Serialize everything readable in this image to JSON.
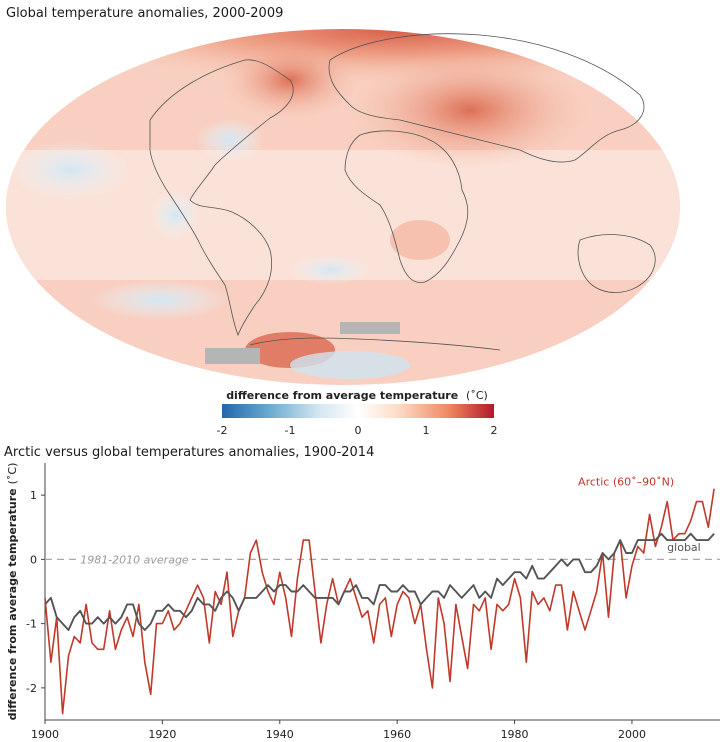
{
  "map": {
    "title": "Global temperature anomalies, 2000-2009",
    "colorbar": {
      "title": "difference from average temperature",
      "unit": "(˚C)",
      "ticks": [
        "-2",
        "-1",
        "0",
        "1",
        "2"
      ],
      "range": [
        -2,
        2
      ],
      "colors": [
        "#2166ac",
        "#67a9cf",
        "#d1e5f0",
        "#ffffff",
        "#fddbc7",
        "#ef8a62",
        "#b2182b"
      ]
    }
  },
  "chart_data": {
    "type": "line",
    "title": "Arctic versus global temperatures anomalies, 1900-2014",
    "xlabel": "",
    "ylabel": "difference from average temperature",
    "ylabel_unit": "(˚C)",
    "xlim": [
      1900,
      2015
    ],
    "ylim": [
      -2.5,
      1.5
    ],
    "xticks": [
      1900,
      1920,
      1940,
      1960,
      1980,
      2000
    ],
    "yticks": [
      -2,
      -1,
      0,
      1
    ],
    "ytick_labels": [
      "-2",
      "-1",
      "0",
      "1"
    ],
    "reference_line": {
      "y": 0,
      "label": "1981-2010 average",
      "color": "#aaaaaa"
    },
    "grid": false,
    "series": [
      {
        "name": "Arctic (60˚–90˚N)",
        "color": "#c0392b",
        "x": [
          1900,
          1901,
          1902,
          1903,
          1904,
          1905,
          1906,
          1907,
          1908,
          1909,
          1910,
          1911,
          1912,
          1913,
          1914,
          1915,
          1916,
          1917,
          1918,
          1919,
          1920,
          1921,
          1922,
          1923,
          1924,
          1925,
          1926,
          1927,
          1928,
          1929,
          1930,
          1931,
          1932,
          1933,
          1934,
          1935,
          1936,
          1937,
          1938,
          1939,
          1940,
          1941,
          1942,
          1943,
          1944,
          1945,
          1946,
          1947,
          1948,
          1949,
          1950,
          1951,
          1952,
          1953,
          1954,
          1955,
          1956,
          1957,
          1958,
          1959,
          1960,
          1961,
          1962,
          1963,
          1964,
          1965,
          1966,
          1967,
          1968,
          1969,
          1970,
          1971,
          1972,
          1973,
          1974,
          1975,
          1976,
          1977,
          1978,
          1979,
          1980,
          1981,
          1982,
          1983,
          1984,
          1985,
          1986,
          1987,
          1988,
          1989,
          1990,
          1991,
          1992,
          1993,
          1994,
          1995,
          1996,
          1997,
          1998,
          1999,
          2000,
          2001,
          2002,
          2003,
          2004,
          2005,
          2006,
          2007,
          2008,
          2009,
          2010,
          2011,
          2012,
          2013,
          2014
        ],
        "y": [
          -0.6,
          -1.6,
          -0.9,
          -2.4,
          -1.5,
          -1.2,
          -1.3,
          -0.7,
          -1.3,
          -1.4,
          -1.4,
          -0.8,
          -1.4,
          -1.1,
          -0.9,
          -1.2,
          -0.7,
          -1.6,
          -2.1,
          -1.0,
          -1.0,
          -0.8,
          -1.1,
          -1.0,
          -0.8,
          -0.6,
          -0.4,
          -0.6,
          -1.3,
          -0.5,
          -0.7,
          -0.2,
          -1.2,
          -0.8,
          -0.6,
          0.1,
          0.3,
          -0.2,
          -0.5,
          -0.7,
          -0.2,
          -0.6,
          -1.2,
          -0.3,
          0.3,
          0.3,
          -0.5,
          -1.3,
          -0.7,
          -0.3,
          -0.7,
          -0.5,
          -0.3,
          -0.6,
          -0.9,
          -0.8,
          -1.3,
          -0.7,
          -0.6,
          -1.2,
          -0.7,
          -0.5,
          -0.6,
          -1.0,
          -0.7,
          -1.4,
          -2.0,
          -0.6,
          -1.0,
          -1.9,
          -0.7,
          -1.2,
          -1.7,
          -0.7,
          -0.8,
          -0.6,
          -1.4,
          -0.7,
          -0.8,
          -0.7,
          -0.3,
          -0.6,
          -1.6,
          -0.5,
          -0.7,
          -0.6,
          -0.8,
          -0.4,
          -0.4,
          -1.1,
          -0.5,
          -0.8,
          -1.1,
          -0.8,
          -0.5,
          0.1,
          -0.9,
          0.1,
          0.3,
          -0.6,
          -0.1,
          0.2,
          0.1,
          0.7,
          0.2,
          0.5,
          0.9,
          0.3,
          0.4,
          0.4,
          0.6,
          0.9,
          0.9,
          0.5,
          1.1
        ]
      },
      {
        "name": "global",
        "color": "#555555",
        "x": [
          1900,
          1901,
          1902,
          1903,
          1904,
          1905,
          1906,
          1907,
          1908,
          1909,
          1910,
          1911,
          1912,
          1913,
          1914,
          1915,
          1916,
          1917,
          1918,
          1919,
          1920,
          1921,
          1922,
          1923,
          1924,
          1925,
          1926,
          1927,
          1928,
          1929,
          1930,
          1931,
          1932,
          1933,
          1934,
          1935,
          1936,
          1937,
          1938,
          1939,
          1940,
          1941,
          1942,
          1943,
          1944,
          1945,
          1946,
          1947,
          1948,
          1949,
          1950,
          1951,
          1952,
          1953,
          1954,
          1955,
          1956,
          1957,
          1958,
          1959,
          1960,
          1961,
          1962,
          1963,
          1964,
          1965,
          1966,
          1967,
          1968,
          1969,
          1970,
          1971,
          1972,
          1973,
          1974,
          1975,
          1976,
          1977,
          1978,
          1979,
          1980,
          1981,
          1982,
          1983,
          1984,
          1985,
          1986,
          1987,
          1988,
          1989,
          1990,
          1991,
          1992,
          1993,
          1994,
          1995,
          1996,
          1997,
          1998,
          1999,
          2000,
          2001,
          2002,
          2003,
          2004,
          2005,
          2006,
          2007,
          2008,
          2009,
          2010,
          2011,
          2012,
          2013,
          2014
        ],
        "y": [
          -0.7,
          -0.6,
          -0.9,
          -1.0,
          -1.1,
          -0.9,
          -0.8,
          -1.0,
          -1.0,
          -0.9,
          -1.0,
          -0.9,
          -1.0,
          -0.9,
          -0.7,
          -0.7,
          -1.0,
          -1.1,
          -1.0,
          -0.8,
          -0.8,
          -0.7,
          -0.8,
          -0.8,
          -0.9,
          -0.8,
          -0.6,
          -0.7,
          -0.7,
          -0.8,
          -0.6,
          -0.5,
          -0.6,
          -0.8,
          -0.6,
          -0.6,
          -0.6,
          -0.5,
          -0.4,
          -0.5,
          -0.4,
          -0.4,
          -0.5,
          -0.5,
          -0.4,
          -0.5,
          -0.6,
          -0.6,
          -0.6,
          -0.6,
          -0.7,
          -0.5,
          -0.5,
          -0.4,
          -0.6,
          -0.6,
          -0.7,
          -0.4,
          -0.4,
          -0.5,
          -0.5,
          -0.4,
          -0.5,
          -0.5,
          -0.7,
          -0.6,
          -0.5,
          -0.5,
          -0.6,
          -0.4,
          -0.5,
          -0.6,
          -0.5,
          -0.4,
          -0.6,
          -0.5,
          -0.6,
          -0.3,
          -0.4,
          -0.3,
          -0.2,
          -0.2,
          -0.3,
          -0.1,
          -0.3,
          -0.3,
          -0.2,
          -0.1,
          0.0,
          -0.1,
          0.0,
          0.0,
          -0.2,
          -0.2,
          -0.1,
          0.1,
          0.0,
          0.1,
          0.3,
          0.1,
          0.1,
          0.3,
          0.3,
          0.3,
          0.3,
          0.4,
          0.3,
          0.3,
          0.3,
          0.3,
          0.4,
          0.3,
          0.3,
          0.3,
          0.4
        ]
      }
    ],
    "series_labels": [
      {
        "text": "Arctic (60˚–90˚N)",
        "color": "#c0392b"
      },
      {
        "text": "global",
        "color": "#555555"
      }
    ]
  }
}
